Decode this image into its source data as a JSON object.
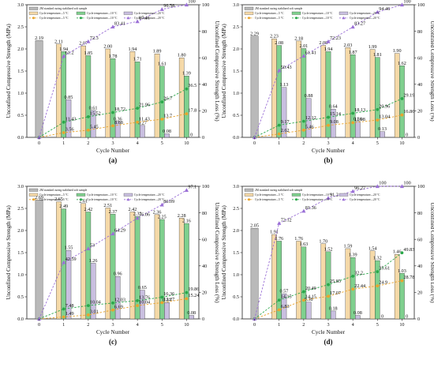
{
  "figure": {
    "axes": {
      "x_title": "Cycle Number",
      "y_left_title": "Unconfined Compressive Strength (MPa)",
      "y_right_title": "Unconfined Compressive Strength Loss (%)",
      "x_ticks": [
        "0",
        "1",
        "2",
        "3",
        "4",
        "5",
        "10"
      ],
      "y_left_ticks": [
        "0.0",
        "0.5",
        "1.0",
        "1.5",
        "2.0",
        "2.5",
        "3.0"
      ],
      "y_right_ticks": [
        "0",
        "20",
        "40",
        "60",
        "80",
        "100"
      ]
    },
    "legend": {
      "items": [
        "2M standard curing stabilized soft sample",
        "Cycle temperature—5 °C",
        "Cycle temperature—10 °C",
        "Cycle temperature—20 °C",
        "Cycle temperature—5 °C",
        "Cycle temperature—10 °C",
        "Cycle temperature—20 °C"
      ]
    },
    "colors": {
      "standard": "#b9b9b9",
      "t5": "#f5d9a8",
      "t10": "#7fd08e",
      "t20": "#c9bfe0",
      "l5": "#e8a42e",
      "l10": "#2aa84a",
      "l20": "#9a6fd6"
    }
  },
  "chart_data": [
    {
      "panel": "(a)",
      "type": "bar",
      "categories": [
        "0",
        "1",
        "2",
        "3",
        "4",
        "5",
        "10"
      ],
      "series": [
        {
          "name": "2M standard curing stabilized soft sample",
          "values": [
            2.19,
            null,
            null,
            null,
            null,
            null,
            null
          ]
        },
        {
          "name": "Cycle temperature—5 °C",
          "values": [
            null,
            2.11,
            2.07,
            2.0,
            1.94,
            1.89,
            1.8
          ]
        },
        {
          "name": "Cycle temperature—10 °C",
          "values": [
            null,
            1.94,
            1.85,
            1.78,
            1.71,
            1.61,
            1.39
          ]
        },
        {
          "name": "Cycle temperature—20 °C",
          "values": [
            null,
            0.85,
            0.61,
            0.36,
            0.27,
            0.08,
            0
          ]
        }
      ],
      "loss_series": [
        {
          "name": "Cycle temperature—5 °C",
          "values": [
            0,
            3.56,
            5.45,
            8.68,
            11.43,
            13.7,
            17.8
          ]
        },
        {
          "name": "Cycle temperature—10 °C",
          "values": [
            0,
            11.43,
            15.52,
            18.72,
            21.96,
            26.7,
            36.5
          ]
        },
        {
          "name": "Cycle temperature—20 °C",
          "values": [
            0,
            61.2,
            72.3,
            83.41,
            87.41,
            96.58,
            100
          ]
        }
      ],
      "ylim": [
        0,
        3.0
      ],
      "y2lim": [
        0,
        100
      ]
    },
    {
      "panel": "(b)",
      "type": "bar",
      "categories": [
        "0",
        "1",
        "2",
        "3",
        "4",
        "5",
        "10"
      ],
      "series": [
        {
          "name": "2M standard curing stabilized soft sample",
          "values": [
            2.29,
            null,
            null,
            null,
            null,
            null,
            null
          ]
        },
        {
          "name": "Cycle temperature—5 °C",
          "values": [
            null,
            2.23,
            2.18,
            2.08,
            2.03,
            1.99,
            1.9
          ]
        },
        {
          "name": "Cycle temperature—10 °C",
          "values": [
            null,
            2.08,
            2.01,
            1.94,
            1.87,
            1.81,
            1.62
          ]
        },
        {
          "name": "Cycle temperature—20 °C",
          "values": [
            null,
            1.13,
            0.88,
            0.64,
            0.36,
            0.13,
            0
          ]
        }
      ],
      "loss_series": [
        {
          "name": "Cycle temperature—5 °C",
          "values": [
            0,
            2.62,
            5.46,
            9.08,
            11.08,
            13.04,
            16.86
          ]
        },
        {
          "name": "Cycle temperature—10 °C",
          "values": [
            0,
            9.17,
            12.12,
            15.14,
            18.13,
            20.96,
            29.19
          ]
        },
        {
          "name": "Cycle temperature—20 °C",
          "values": [
            0,
            50.43,
            61.41,
            72.23,
            83.27,
            94.46,
            100
          ]
        }
      ],
      "ylim": [
        0,
        3.0
      ],
      "y2lim": [
        0,
        100
      ]
    },
    {
      "panel": "(c)",
      "type": "bar",
      "categories": [
        "0",
        "1",
        "2",
        "3",
        "4",
        "5",
        "10"
      ],
      "series": [
        {
          "name": "2M standard curing stabilized soft sample",
          "values": [
            2.69,
            null,
            null,
            null,
            null,
            null,
            null
          ]
        },
        {
          "name": "Cycle temperature—5 °C",
          "values": [
            null,
            2.65,
            2.61,
            2.51,
            2.42,
            2.36,
            2.28
          ]
        },
        {
          "name": "Cycle temperature—10 °C",
          "values": [
            null,
            2.49,
            2.42,
            2.37,
            2.32,
            2.25,
            2.16
          ]
        },
        {
          "name": "Cycle temperature—20 °C",
          "values": [
            null,
            1.55,
            1.26,
            0.96,
            0.65,
            0.37,
            0.08
          ]
        }
      ],
      "loss_series": [
        {
          "name": "Cycle temperature—5 °C",
          "values": [
            0,
            1.49,
            3.01,
            6.69,
            10.04,
            12.27,
            15.24
          ]
        },
        {
          "name": "Cycle temperature—10 °C",
          "values": [
            0,
            7.48,
            10.04,
            12.03,
            13.76,
            16.36,
            19.86
          ]
        },
        {
          "name": "Cycle temperature—20 °C",
          "values": [
            0,
            42.59,
            53.0,
            64.29,
            76.06,
            86.09,
            97.1
          ]
        }
      ],
      "ylim": [
        0,
        3.0
      ],
      "y2lim": [
        0,
        100
      ]
    },
    {
      "panel": "(d)",
      "type": "bar",
      "categories": [
        "0",
        "1",
        "2",
        "3",
        "4",
        "5",
        "10"
      ],
      "series": [
        {
          "name": "2M standard curing stabilized soft sample",
          "values": [
            2.05,
            null,
            null,
            null,
            null,
            null,
            null
          ]
        },
        {
          "name": "Cycle temperature—5 °C",
          "values": [
            null,
            1.91,
            1.76,
            1.7,
            1.59,
            1.54,
            1.46
          ]
        },
        {
          "name": "Cycle temperature—10 °C",
          "values": [
            null,
            1.76,
            1.63,
            1.52,
            1.39,
            1.32,
            1.03
          ]
        },
        {
          "name": "Cycle temperature—20 °C",
          "values": [
            null,
            0.57,
            0.38,
            0.18,
            0.08,
            0,
            0
          ]
        }
      ],
      "loss_series": [
        {
          "name": "Cycle temperature—5 °C",
          "values": [
            0,
            6.83,
            14.15,
            17.07,
            22.44,
            24.9,
            28.78
          ]
        },
        {
          "name": "Cycle temperature—10 °C",
          "values": [
            0,
            14.15,
            20.49,
            25.85,
            32.2,
            35.61,
            49.83
          ]
        },
        {
          "name": "Cycle temperature—20 °C",
          "values": [
            0,
            72.12,
            81.36,
            91.2,
            96.27,
            100,
            100
          ]
        }
      ],
      "ylim": [
        0,
        3.0
      ],
      "y2lim": [
        0,
        100
      ]
    }
  ]
}
